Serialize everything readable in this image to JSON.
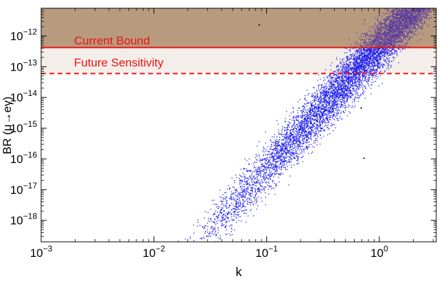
{
  "chart_data": {
    "type": "scatter",
    "title": "",
    "xlabel": "k",
    "ylabel": "BR (μ→eγ)",
    "xscale": "log",
    "yscale": "log",
    "xlim": [
      0.001,
      3.2
    ],
    "ylim": [
      2e-19,
      8e-12
    ],
    "x_ticks": [
      {
        "value": 0.001,
        "label_base": "10",
        "label_exp": "−3"
      },
      {
        "value": 0.01,
        "label_base": "10",
        "label_exp": "−2"
      },
      {
        "value": 0.1,
        "label_base": "10",
        "label_exp": "−1"
      },
      {
        "value": 1,
        "label_base": "10",
        "label_exp": "0"
      }
    ],
    "y_ticks": [
      {
        "value": 1e-18,
        "label_base": "10",
        "label_exp": "−18"
      },
      {
        "value": 1e-17,
        "label_base": "10",
        "label_exp": "−17"
      },
      {
        "value": 1e-16,
        "label_base": "10",
        "label_exp": "−16"
      },
      {
        "value": 1e-15,
        "label_base": "10",
        "label_exp": "−15"
      },
      {
        "value": 1e-14,
        "label_base": "10",
        "label_exp": "−14"
      },
      {
        "value": 1e-13,
        "label_base": "10",
        "label_exp": "−13"
      },
      {
        "value": 1e-12,
        "label_base": "10",
        "label_exp": "−12"
      }
    ],
    "grid": false,
    "excluded_region": {
      "from": 4.2e-13,
      "color": "#b89b7f"
    },
    "future_region": {
      "from": 6e-14,
      "to": 4.2e-13,
      "color": "#f4eeea"
    },
    "bounds": [
      {
        "label": "Current Bound",
        "value": 4.2e-13,
        "style": "solid",
        "color": "#ee1111"
      },
      {
        "label": "Future Sensitivity",
        "value": 6e-14,
        "style": "dashed",
        "color": "#ee1111"
      }
    ],
    "series": [
      {
        "color": "#1a1aee",
        "overlap_color": "#5a3a9e",
        "band": {
          "k_min": 0.013,
          "k_max": 2.9,
          "br_at_k1": 5e-13,
          "slope": 4,
          "spread_dex": 0.42
        },
        "points": 9000
      }
    ],
    "outliers": [
      {
        "x": 0.086,
        "y": 2.3e-12
      },
      {
        "x": 0.73,
        "y": 1.05e-16
      },
      {
        "x": 0.69,
        "y": 4.5e-15
      }
    ]
  }
}
